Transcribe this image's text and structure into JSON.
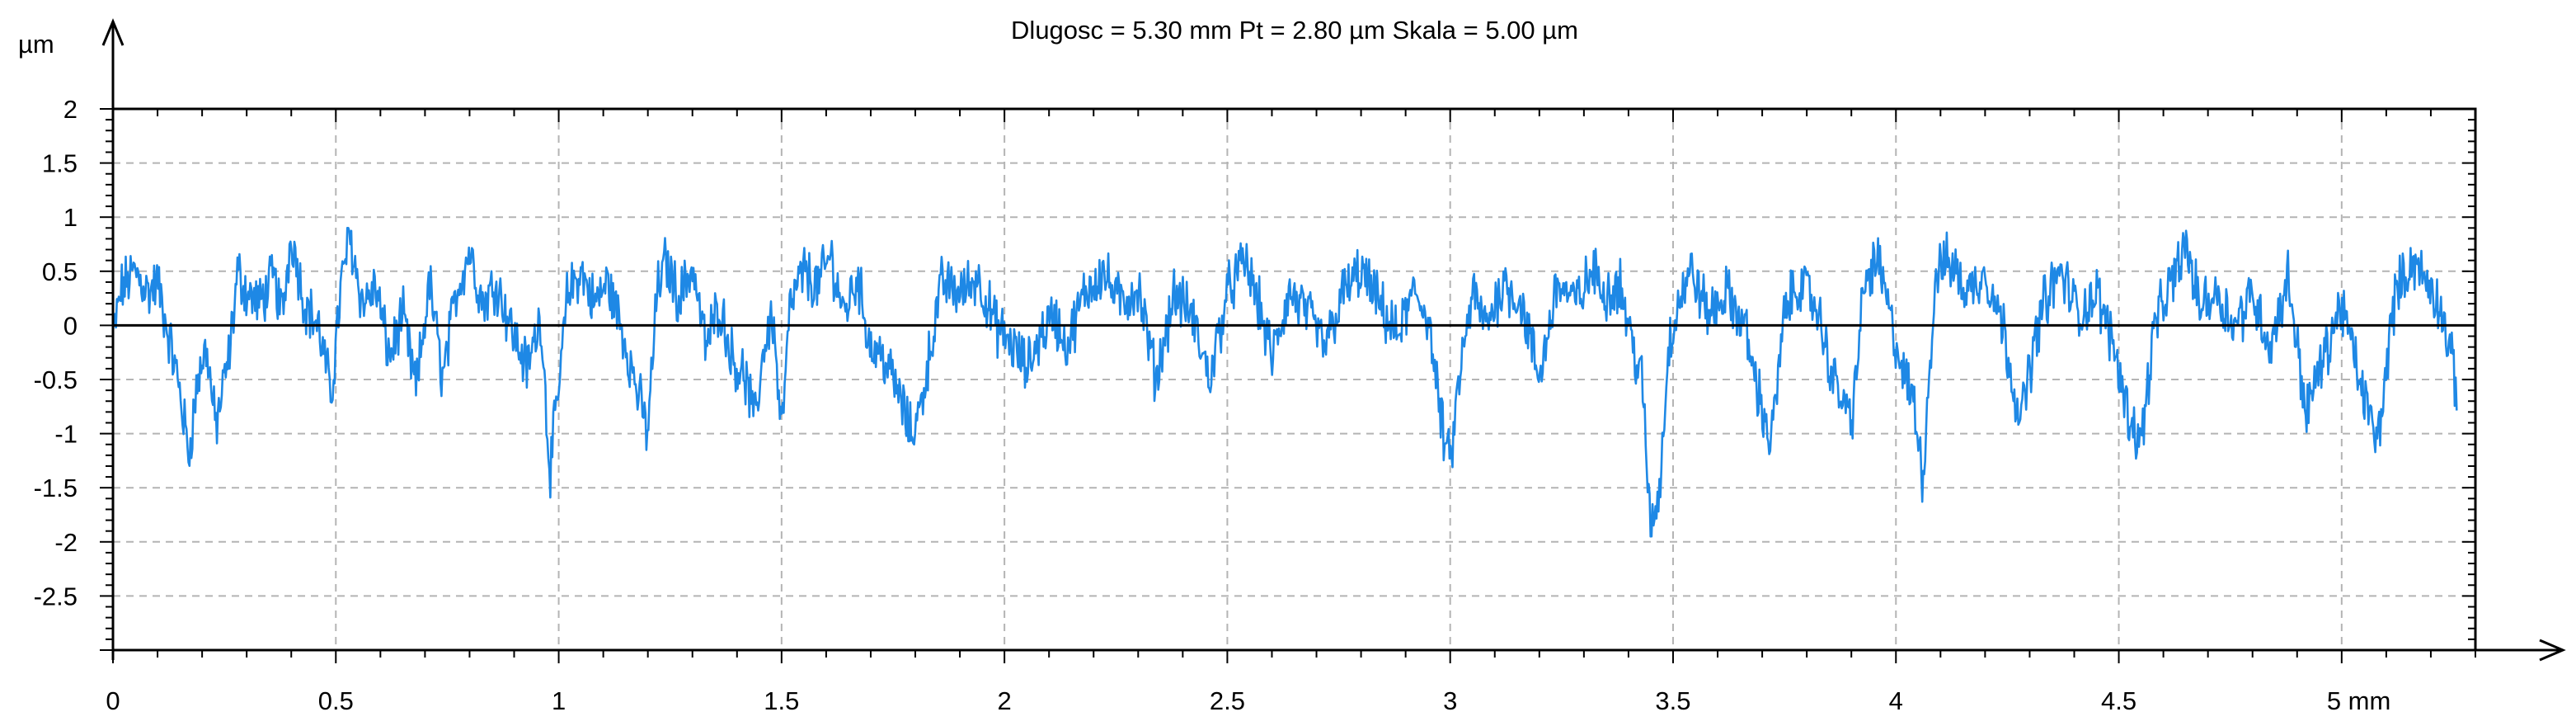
{
  "chart_data": {
    "type": "line",
    "title": "Dlugosc = 5.30 mm  Pt = 2.80 µm  Skala = 5.00 µm",
    "ylabel": "µm",
    "xunit_label": "mm",
    "xlim": [
      0,
      5.3
    ],
    "ylim": [
      -3,
      2
    ],
    "x_ticks": [
      0,
      0.5,
      1,
      1.5,
      2,
      2.5,
      3,
      3.5,
      4,
      4.5,
      5
    ],
    "x_tick_labels": [
      "0",
      "0.5",
      "1",
      "1.5",
      "2",
      "2.5",
      "3",
      "3.5",
      "4",
      "4.5",
      "5 mm"
    ],
    "y_ticks": [
      2,
      1.5,
      1,
      0.5,
      0,
      -0.5,
      -1,
      -1.5,
      -2,
      -2.5
    ],
    "y_tick_labels": [
      "2",
      "1.5",
      "1",
      "0.5",
      "0",
      "-0.5",
      "-1",
      "-1.5",
      "-2",
      "-2.5"
    ],
    "grid": true,
    "zero_line": true,
    "series": [
      {
        "color": "#1e88e5",
        "x": [
          0,
          0.02,
          0.05,
          0.08,
          0.1,
          0.13,
          0.15,
          0.17,
          0.19,
          0.21,
          0.23,
          0.26,
          0.28,
          0.3,
          0.33,
          0.36,
          0.38,
          0.4,
          0.43,
          0.46,
          0.49,
          0.51,
          0.53,
          0.56,
          0.59,
          0.62,
          0.65,
          0.68,
          0.71,
          0.74,
          0.77,
          0.8,
          0.83,
          0.86,
          0.9,
          0.93,
          0.96,
          0.98,
          1.0,
          1.02,
          1.05,
          1.08,
          1.11,
          1.14,
          1.17,
          1.2,
          1.22,
          1.24,
          1.27,
          1.3,
          1.33,
          1.36,
          1.39,
          1.42,
          1.44,
          1.46,
          1.48,
          1.5,
          1.52,
          1.55,
          1.58,
          1.61,
          1.64,
          1.67,
          1.7,
          1.73,
          1.76,
          1.79,
          1.81,
          1.83,
          1.86,
          1.9,
          1.94,
          1.98,
          2.02,
          2.05,
          2.08,
          2.11,
          2.14,
          2.18,
          2.22,
          2.26,
          2.3,
          2.34,
          2.38,
          2.42,
          2.46,
          2.5,
          2.54,
          2.57,
          2.6,
          2.64,
          2.68,
          2.72,
          2.76,
          2.8,
          2.84,
          2.88,
          2.92,
          2.95,
          2.98,
          3.0,
          3.02,
          3.05,
          3.08,
          3.12,
          3.16,
          3.2,
          3.24,
          3.28,
          3.32,
          3.35,
          3.38,
          3.41,
          3.43,
          3.45,
          3.47,
          3.49,
          3.51,
          3.54,
          3.58,
          3.62,
          3.66,
          3.69,
          3.72,
          3.75,
          3.78,
          3.82,
          3.86,
          3.9,
          3.93,
          3.96,
          3.99,
          4.02,
          4.04,
          4.06,
          4.09,
          4.12,
          4.16,
          4.2,
          4.24,
          4.28,
          4.3,
          4.33,
          4.37,
          4.41,
          4.45,
          4.49,
          4.52,
          4.55,
          4.58,
          4.62,
          4.65,
          4.68,
          4.72,
          4.76,
          4.8,
          4.84,
          4.88,
          4.92,
          4.96,
          5.0,
          5.04,
          5.08,
          5.12,
          5.16,
          5.19,
          5.22,
          5.25,
          5.26
        ],
        "y": [
          -0.1,
          0.35,
          0.5,
          0.3,
          0.4,
          -0.2,
          -0.6,
          -1.2,
          -0.5,
          -0.2,
          -0.95,
          -0.3,
          0.5,
          0.3,
          0.2,
          0.45,
          0.1,
          0.85,
          0.2,
          0.0,
          -0.65,
          0.3,
          0.85,
          0.2,
          0.35,
          -0.3,
          0.1,
          -0.6,
          0.4,
          -0.5,
          0.3,
          0.7,
          0.2,
          0.4,
          -0.1,
          -0.4,
          0.1,
          -1.35,
          -0.6,
          0.3,
          0.5,
          0.2,
          0.4,
          0.0,
          -0.5,
          -1.0,
          0.3,
          0.6,
          0.25,
          0.55,
          -0.2,
          0.2,
          -0.3,
          -0.5,
          -0.9,
          -0.2,
          0.1,
          -1.0,
          0.2,
          0.5,
          0.35,
          0.65,
          0.1,
          0.45,
          -0.2,
          -0.3,
          -0.6,
          -1.0,
          -0.8,
          -0.3,
          0.4,
          0.3,
          0.45,
          0.0,
          -0.2,
          -0.4,
          -0.1,
          0.1,
          -0.2,
          0.3,
          0.5,
          0.2,
          0.35,
          -0.5,
          0.3,
          0.1,
          -0.5,
          0.3,
          0.6,
          0.2,
          -0.3,
          0.3,
          0.1,
          -0.2,
          0.3,
          0.5,
          0.2,
          -0.1,
          0.3,
          0.1,
          -0.9,
          -1.3,
          -0.5,
          0.3,
          0.0,
          0.4,
          0.2,
          -0.5,
          0.4,
          0.2,
          0.5,
          0.3,
          0.4,
          -0.2,
          -0.5,
          -1.9,
          -1.5,
          -0.2,
          0.2,
          0.5,
          0.1,
          0.3,
          0.0,
          -0.6,
          -1.1,
          0.1,
          0.4,
          0.2,
          -0.5,
          -0.9,
          0.4,
          0.6,
          0.0,
          -0.5,
          -0.7,
          -1.4,
          0.5,
          0.6,
          0.3,
          0.5,
          0.0,
          -0.9,
          -0.4,
          0.2,
          0.5,
          0.1,
          0.3,
          -0.2,
          -0.8,
          -1.1,
          0.0,
          0.4,
          0.75,
          0.2,
          0.3,
          0.0,
          0.3,
          -0.2,
          0.45,
          -0.8,
          -0.3,
          0.2,
          -0.5,
          -1.1,
          0.3,
          0.6,
          0.4,
          0.2,
          -0.4,
          -0.7
        ]
      }
    ]
  }
}
